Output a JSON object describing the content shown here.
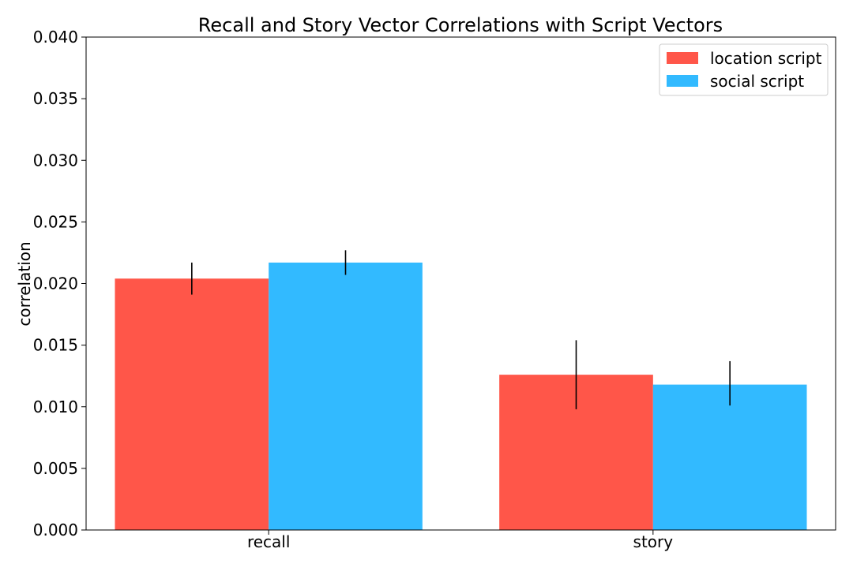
{
  "chart_data": {
    "type": "bar",
    "title": "Recall and Story Vector Correlations with Script Vectors",
    "xlabel": "",
    "ylabel": "correlation",
    "categories": [
      "recall",
      "story"
    ],
    "series": [
      {
        "name": "location script",
        "color": "#ff5649",
        "values": [
          0.0204,
          0.0126
        ],
        "errors": [
          [
            0.0191,
            0.0217
          ],
          [
            0.0098,
            0.0154
          ]
        ]
      },
      {
        "name": "social script",
        "color": "#32baff",
        "values": [
          0.0217,
          0.0118
        ],
        "errors": [
          [
            0.0207,
            0.0227
          ],
          [
            0.0101,
            0.0137
          ]
        ]
      }
    ],
    "ylim": [
      0,
      0.04
    ],
    "yticks": [
      "0.000",
      "0.005",
      "0.010",
      "0.015",
      "0.020",
      "0.025",
      "0.030",
      "0.035",
      "0.040"
    ],
    "grid": false,
    "legend_position": "top-right"
  }
}
